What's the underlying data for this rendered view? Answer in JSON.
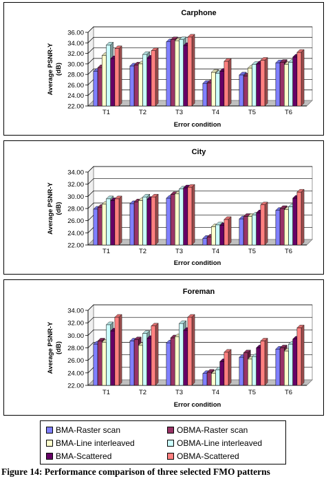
{
  "colors": {
    "BMA-Raster scan": "#8080ff",
    "OBMA-Raster scan": "#993366",
    "BMA-Line interleaved": "#ffffcc",
    "OBMA-Line interleaved": "#ccffff",
    "BMA-Scattered": "#660066",
    "OBMA-Scattered": "#ff8080"
  },
  "chart_data": [
    {
      "type": "bar",
      "title": "Carphone",
      "xlabel": "Error condition",
      "ylabel_line1": "Average PSNR-Y",
      "ylabel_line2": "(dB)",
      "ylim": [
        22,
        36
      ],
      "yticks": [
        "22.00",
        "24.00",
        "26.00",
        "28.00",
        "30.00",
        "32.00",
        "34.00",
        "36.00"
      ],
      "categories": [
        "T1",
        "T2",
        "T3",
        "T4",
        "T5",
        "T6"
      ],
      "series": [
        {
          "name": "BMA-Raster scan",
          "values": [
            28.6,
            29.6,
            34.2,
            26.3,
            27.9,
            30.2
          ]
        },
        {
          "name": "OBMA-Raster scan",
          "values": [
            29.3,
            29.8,
            34.6,
            26.4,
            27.7,
            30.3
          ]
        },
        {
          "name": "BMA-Line interleaved",
          "values": [
            31.6,
            30.0,
            34.4,
            28.4,
            29.2,
            29.9
          ]
        },
        {
          "name": "OBMA-Line interleaved",
          "values": [
            33.6,
            31.8,
            34.6,
            28.2,
            29.9,
            30.3
          ]
        },
        {
          "name": "BMA-Scattered",
          "values": [
            31.0,
            31.1,
            33.5,
            28.6,
            30.0,
            31.3
          ]
        },
        {
          "name": "OBMA-Scattered",
          "values": [
            32.9,
            32.5,
            35.1,
            30.5,
            30.7,
            32.2
          ]
        }
      ]
    },
    {
      "type": "bar",
      "title": "City",
      "xlabel": "Error condition",
      "ylabel_line1": "Average PSNR-Y",
      "ylabel_line2": "(dB)",
      "ylim": [
        22,
        34
      ],
      "yticks": [
        "22.00",
        "24.00",
        "26.00",
        "28.00",
        "30.00",
        "32.00",
        "34.00"
      ],
      "categories": [
        "T1",
        "T2",
        "T3",
        "T4",
        "T5",
        "T6"
      ],
      "series": [
        {
          "name": "BMA-Raster scan",
          "values": [
            27.9,
            28.8,
            29.7,
            23.1,
            26.3,
            27.7
          ]
        },
        {
          "name": "OBMA-Raster scan",
          "values": [
            28.2,
            29.1,
            30.3,
            23.3,
            26.7,
            28.0
          ]
        },
        {
          "name": "BMA-Line interleaved",
          "values": [
            28.7,
            29.3,
            30.4,
            25.0,
            26.7,
            27.8
          ]
        },
        {
          "name": "OBMA-Line interleaved",
          "values": [
            29.6,
            29.9,
            31.2,
            25.3,
            26.9,
            28.3
          ]
        },
        {
          "name": "BMA-Scattered",
          "values": [
            29.3,
            29.5,
            31.4,
            25.2,
            27.3,
            29.7
          ]
        },
        {
          "name": "OBMA-Scattered",
          "values": [
            29.6,
            29.9,
            31.5,
            26.2,
            28.6,
            30.7
          ]
        }
      ]
    },
    {
      "type": "bar",
      "title": "Foreman",
      "xlabel": "Error condition",
      "ylabel_line1": "Average PSNR-Y",
      "ylabel_line2": "(dB)",
      "ylim": [
        22,
        34
      ],
      "yticks": [
        "22.00",
        "24.00",
        "26.00",
        "28.00",
        "30.00",
        "32.00",
        "34.00"
      ],
      "categories": [
        "T1",
        "T2",
        "T3",
        "T4",
        "T5",
        "T6"
      ],
      "series": [
        {
          "name": "BMA-Raster scan",
          "values": [
            28.6,
            29.1,
            28.8,
            23.9,
            26.5,
            27.8
          ]
        },
        {
          "name": "OBMA-Raster scan",
          "values": [
            29.1,
            29.3,
            29.6,
            24.1,
            27.2,
            28.0
          ]
        },
        {
          "name": "BMA-Line interleaved",
          "values": [
            28.9,
            28.4,
            29.8,
            23.9,
            26.2,
            27.5
          ]
        },
        {
          "name": "OBMA-Line interleaved",
          "values": [
            31.7,
            30.3,
            31.9,
            24.5,
            26.6,
            28.6
          ]
        },
        {
          "name": "BMA-Scattered",
          "values": [
            30.7,
            29.5,
            30.8,
            25.8,
            28.0,
            29.4
          ]
        },
        {
          "name": "OBMA-Scattered",
          "values": [
            32.9,
            31.5,
            32.9,
            27.3,
            29.1,
            31.2
          ]
        }
      ]
    }
  ],
  "legend": {
    "items": [
      "BMA-Raster scan",
      "OBMA-Raster scan",
      "BMA-Line interleaved",
      "OBMA-Line interleaved",
      "BMA-Scattered",
      "OBMA-Scattered"
    ]
  },
  "caption": "Figure 14: Performance comparison of three selected FMO patterns"
}
